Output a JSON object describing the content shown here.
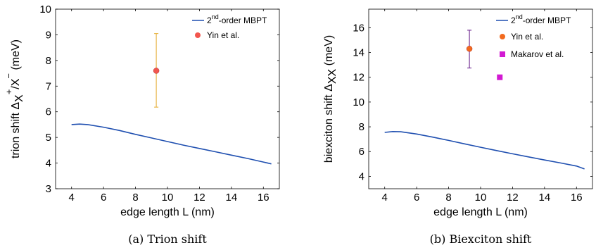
{
  "chart_data": [
    {
      "type": "line",
      "caption": "(a) Trion shift",
      "xlabel": "edge length L (nm)",
      "ylabel_prefix": "trion shift",
      "ylabel_symbol": "Δ",
      "ylabel_sub_1": "X",
      "ylabel_sup_1": "+",
      "ylabel_sub_2": "/X",
      "ylabel_sup_2": "−",
      "ylabel_unit": "(meV)",
      "xlim": [
        3,
        17
      ],
      "ylim": [
        3,
        10
      ],
      "xticks": [
        4,
        6,
        8,
        10,
        12,
        14,
        16
      ],
      "yticks": [
        3,
        4,
        5,
        6,
        7,
        8,
        9,
        10
      ],
      "legend_position": "top-right",
      "series": [
        {
          "kind": "line",
          "label_main": "2",
          "label_sup": "nd",
          "label_tail": "-order MBPT",
          "color": "#1f4fb0",
          "x": [
            4,
            4.5,
            5,
            6,
            7,
            8,
            9,
            10,
            11,
            12,
            13,
            14,
            15,
            16,
            16.5
          ],
          "y": [
            5.5,
            5.52,
            5.5,
            5.4,
            5.27,
            5.12,
            4.98,
            4.84,
            4.7,
            4.57,
            4.44,
            4.31,
            4.18,
            4.04,
            3.97
          ]
        },
        {
          "kind": "errorbar",
          "name": "Yin et al.",
          "color": "#f2564e",
          "error_color": "#e8b74a",
          "marker": "circle",
          "x": [
            9.3
          ],
          "y": [
            7.6
          ],
          "yerr_low": [
            6.18
          ],
          "yerr_high": [
            9.05
          ]
        }
      ]
    },
    {
      "type": "line",
      "caption": "(b) Biexciton shift",
      "xlabel": "edge length L (nm)",
      "ylabel_prefix": "biexciton shift",
      "ylabel_symbol": "Δ",
      "ylabel_sub_1": "XX",
      "ylabel_unit": "(meV)",
      "xlim": [
        3,
        17
      ],
      "ylim": [
        3,
        17.5
      ],
      "xticks": [
        4,
        6,
        8,
        10,
        12,
        14,
        16
      ],
      "yticks": [
        4,
        6,
        8,
        10,
        12,
        14,
        16
      ],
      "legend_position": "top-right",
      "series": [
        {
          "kind": "line",
          "label_main": "2",
          "label_sup": "nd",
          "label_tail": "-order MBPT",
          "color": "#1f4fb0",
          "x": [
            4,
            4.5,
            5,
            6,
            7,
            8,
            9,
            10,
            11,
            12,
            13,
            14,
            15,
            16,
            16.5
          ],
          "y": [
            7.55,
            7.62,
            7.6,
            7.42,
            7.17,
            6.9,
            6.62,
            6.35,
            6.08,
            5.82,
            5.57,
            5.32,
            5.08,
            4.83,
            4.6
          ]
        },
        {
          "kind": "errorbar",
          "name": "Yin et al.",
          "color": "#f26a1e",
          "error_color": "#7a3a9a",
          "marker": "circle",
          "x": [
            9.3
          ],
          "y": [
            14.3
          ],
          "yerr_low": [
            12.75
          ],
          "yerr_high": [
            15.8
          ]
        },
        {
          "kind": "point",
          "name": "Makarov et al.",
          "color": "#d21ad2",
          "marker": "square",
          "x": [
            11.2
          ],
          "y": [
            12.0
          ]
        }
      ]
    }
  ]
}
